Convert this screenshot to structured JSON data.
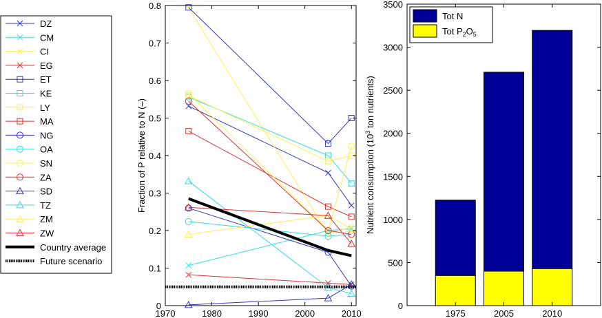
{
  "chart_data": [
    {
      "type": "line",
      "ylabel": "Fraction of P relative to N (–)",
      "xlabel": "",
      "xlim": [
        1970,
        2011
      ],
      "ylim": [
        0,
        0.8
      ],
      "xticks": [
        "1970",
        "1980",
        "1990",
        "2000",
        "2010"
      ],
      "yticks": [
        "0",
        "0.1",
        "0.2",
        "0.3",
        "0.4",
        "0.5",
        "0.6",
        "0.7",
        "0.8"
      ],
      "grid": false,
      "legend_position": "outside-left",
      "x": [
        1975,
        2005,
        2010
      ],
      "series": [
        {
          "name": "DZ",
          "color": "#3333cc",
          "marker": "x",
          "values": [
            0.532,
            0.354,
            0.267
          ]
        },
        {
          "name": "CM",
          "color": "#33dddd",
          "marker": "x",
          "values": [
            0.107,
            0.2,
            0.205
          ]
        },
        {
          "name": "CI",
          "color": "#ffee55",
          "marker": "x",
          "values": [
            0.794,
            0.19,
            0.21
          ]
        },
        {
          "name": "EG",
          "color": "#dd3333",
          "marker": "x",
          "values": [
            0.082,
            0.06,
            0.056
          ]
        },
        {
          "name": "ET",
          "color": "#3333cc",
          "marker": "square",
          "values": [
            0.795,
            0.432,
            0.5
          ]
        },
        {
          "name": "KE",
          "color": "#33dddd",
          "marker": "square",
          "values": [
            0.556,
            0.4,
            0.326
          ]
        },
        {
          "name": "LY",
          "color": "#ffee55",
          "marker": "square",
          "values": [
            0.56,
            0.385,
            0.4
          ]
        },
        {
          "name": "MA",
          "color": "#dd3333",
          "marker": "square",
          "values": [
            0.465,
            0.264,
            0.237
          ]
        },
        {
          "name": "NG",
          "color": "#3333cc",
          "marker": "circle",
          "values": [
            0.26,
            0.142,
            0.052
          ]
        },
        {
          "name": "OA",
          "color": "#33dddd",
          "marker": "circle",
          "values": [
            0.224,
            0.185,
            0.19
          ]
        },
        {
          "name": "SN",
          "color": "#ffee55",
          "marker": "circle",
          "values": [
            0.565,
            0.2,
            0.425
          ]
        },
        {
          "name": "ZA",
          "color": "#dd3333",
          "marker": "circle",
          "values": [
            0.545,
            0.2,
            0.19
          ]
        },
        {
          "name": "SD",
          "color": "#3333cc",
          "marker": "triangle",
          "values": [
            0.002,
            0.02,
            0.057
          ]
        },
        {
          "name": "TZ",
          "color": "#33dddd",
          "marker": "triangle",
          "values": [
            0.332,
            0.048,
            0.032
          ]
        },
        {
          "name": "ZM",
          "color": "#ffee55",
          "marker": "triangle",
          "values": [
            0.19,
            0.24,
            0.205
          ]
        },
        {
          "name": "ZW",
          "color": "#dd3333",
          "marker": "triangle",
          "values": [
            0.262,
            0.24,
            0.165
          ]
        },
        {
          "name": "Country average",
          "color": "#000000",
          "marker": "none",
          "style": "thick",
          "values": [
            0.285,
            0.147,
            0.133
          ]
        },
        {
          "name": "Future scenario",
          "color": "#000000",
          "marker": "none",
          "style": "dotted",
          "x_range": [
            1970,
            2011
          ],
          "value": 0.05
        }
      ]
    },
    {
      "type": "bar",
      "stacked": true,
      "ylabel": "Nutrient consumption (10^3 ton nutrients)",
      "ylabel_parts": {
        "pre": "Nutrient consumption (10",
        "sup": "3",
        "post": " ton nutrients)"
      },
      "xlabel": "",
      "categories": [
        "1975",
        "2005",
        "2010"
      ],
      "ylim": [
        0,
        3500
      ],
      "yticks": [
        "0",
        "500",
        "1000",
        "1500",
        "2000",
        "2500",
        "3000",
        "3500"
      ],
      "grid": false,
      "legend_position": "top-left",
      "series": [
        {
          "name": "Tot P2O5",
          "color": "#ffff00",
          "values": [
            350,
            400,
            430
          ]
        },
        {
          "name": "Tot N",
          "color": "#000099",
          "values": [
            875,
            2310,
            2765
          ]
        }
      ],
      "totals": [
        1225,
        2710,
        3195
      ],
      "legend": [
        {
          "label": "Tot N",
          "color": "#000099"
        },
        {
          "label": "Tot P",
          "sub1": "2",
          "mid": "O",
          "sub2": "5",
          "color": "#ffff00"
        }
      ]
    }
  ]
}
